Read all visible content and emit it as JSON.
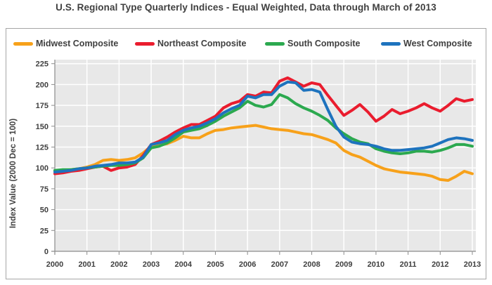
{
  "title": "U.S. Regional Type Quarterly Indices - Equal Weighted, Data through March of 2013",
  "colors": {
    "text": "#3f3f3f",
    "plot_background": "#e8e8e8",
    "gridline": "#ffffff",
    "axis": "#8c8c8c",
    "box_border": "#a6a6a6"
  },
  "chart_data": {
    "type": "line",
    "title": "U.S. Regional Type Quarterly Indices - Equal Weighted, Data through March of 2013",
    "xlabel": "",
    "ylabel": "Index Value (2000 Dec = 100)",
    "ylim": [
      0,
      225
    ],
    "y_ticks": [
      0,
      25,
      50,
      75,
      100,
      125,
      150,
      175,
      200,
      225
    ],
    "x_tick_labels": [
      "2000",
      "2001",
      "2002",
      "2003",
      "2004",
      "2005",
      "2006",
      "2007",
      "2008",
      "2009",
      "2010",
      "2011",
      "2012",
      "2013"
    ],
    "x_start": "2000 Q1",
    "x_end": "2013 Q1",
    "frequency": "quarterly",
    "grid": true,
    "legend_position": "top",
    "series": [
      {
        "name": "Midwest Composite",
        "color": "#f7a11a",
        "values": [
          96,
          97,
          98,
          99,
          101,
          104,
          109,
          110,
          109,
          110,
          112,
          118,
          126,
          127,
          129,
          133,
          138,
          136,
          136,
          141,
          145,
          146,
          148,
          149,
          150,
          151,
          149,
          147,
          146,
          145,
          143,
          141,
          140,
          137,
          134,
          130,
          121,
          116,
          113,
          108,
          103,
          99,
          97,
          95,
          94,
          93,
          92,
          90,
          86,
          85,
          90,
          96,
          93
        ]
      },
      {
        "name": "Northeast Composite",
        "color": "#ea1c2e",
        "values": [
          93,
          94,
          96,
          97,
          99,
          101,
          102,
          97,
          100,
          101,
          104,
          115,
          128,
          132,
          137,
          143,
          148,
          152,
          152,
          157,
          162,
          172,
          177,
          180,
          188,
          186,
          191,
          190,
          204,
          208,
          203,
          198,
          202,
          200,
          187,
          175,
          163,
          169,
          176,
          167,
          156,
          162,
          170,
          165,
          168,
          172,
          177,
          172,
          168,
          175,
          183,
          180,
          182
        ]
      },
      {
        "name": "South Composite",
        "color": "#2ca94f",
        "values": [
          97,
          98,
          98,
          99,
          100,
          101,
          102,
          103,
          103,
          104,
          106,
          112,
          124,
          126,
          130,
          136,
          143,
          145,
          147,
          151,
          156,
          162,
          167,
          172,
          180,
          175,
          173,
          176,
          188,
          184,
          177,
          172,
          168,
          163,
          157,
          148,
          141,
          135,
          131,
          129,
          123,
          120,
          118,
          117,
          118,
          120,
          120,
          119,
          121,
          124,
          128,
          128,
          126
        ]
      },
      {
        "name": "West Composite",
        "color": "#1e73be",
        "values": [
          95,
          96,
          97,
          99,
          100,
          102,
          103,
          104,
          106,
          106,
          107,
          113,
          128,
          130,
          133,
          140,
          145,
          148,
          150,
          154,
          159,
          166,
          171,
          175,
          186,
          184,
          188,
          188,
          198,
          203,
          202,
          193,
          194,
          191,
          170,
          150,
          137,
          131,
          129,
          128,
          126,
          123,
          121,
          121,
          122,
          123,
          124,
          126,
          130,
          134,
          136,
          135,
          133
        ]
      }
    ]
  }
}
